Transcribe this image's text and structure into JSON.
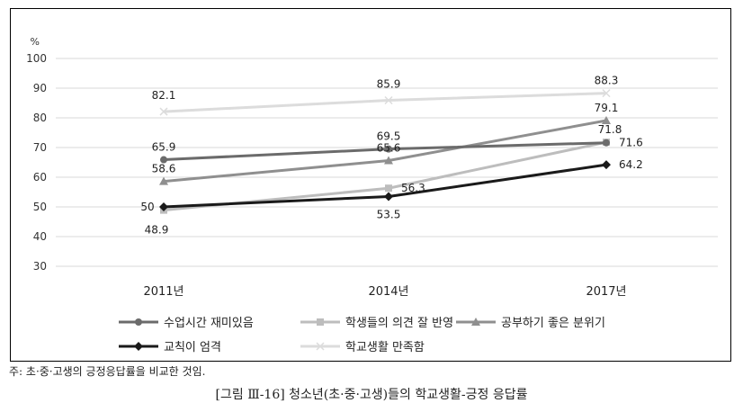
{
  "chart_data": {
    "type": "line",
    "categories": [
      "2011년",
      "2014년",
      "2017년"
    ],
    "ylabel": "%",
    "ylim": [
      30,
      100
    ],
    "yticks": [
      30,
      40,
      50,
      60,
      70,
      80,
      90,
      100
    ],
    "grid": true,
    "legend_position": "bottom",
    "series": [
      {
        "name": "수업시간 재미있음",
        "values": [
          65.9,
          69.5,
          71.6
        ],
        "labels": [
          "65.9",
          "69.5",
          "71.6"
        ],
        "color": "#6b6b6b",
        "marker": "circle"
      },
      {
        "name": "학생들의 의견 잘 반영",
        "values": [
          48.9,
          56.3,
          71.8
        ],
        "labels": [
          "48.9",
          "56.3",
          "71.8"
        ],
        "color": "#bdbdbd",
        "marker": "square"
      },
      {
        "name": "공부하기 좋은 분위기",
        "values": [
          58.6,
          65.6,
          79.1
        ],
        "labels": [
          "58.6",
          "65.6",
          "79.1"
        ],
        "color": "#8f8f8f",
        "marker": "triangle"
      },
      {
        "name": "교칙이 엄격",
        "values": [
          50,
          53.5,
          64.2
        ],
        "labels": [
          "50",
          "53.5",
          "64.2"
        ],
        "color": "#1a1a1a",
        "marker": "diamond"
      },
      {
        "name": "학교생활 만족함",
        "values": [
          82.1,
          85.9,
          88.3
        ],
        "labels": [
          "82.1",
          "85.9",
          "88.3"
        ],
        "color": "#dcdcdc",
        "marker": "cross"
      }
    ]
  },
  "note": "주: 초·중·고생의 긍정응답률을 비교한 것임.",
  "caption": "[그림 Ⅲ-16] 청소년(초·중·고생)들의 학교생활-긍정 응답률"
}
